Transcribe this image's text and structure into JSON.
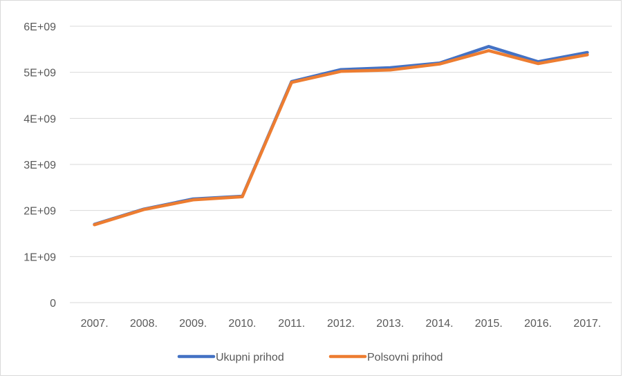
{
  "chart_data": {
    "type": "line",
    "title": "",
    "xlabel": "",
    "ylabel": "",
    "categories": [
      "2007.",
      "2008.",
      "2009.",
      "2010.",
      "2011.",
      "2012.",
      "2013.",
      "2014.",
      "2015.",
      "2016.",
      "2017."
    ],
    "y_ticks": [
      "0",
      "1E+09",
      "2E+09",
      "3E+09",
      "4E+09",
      "5E+09",
      "6E+09"
    ],
    "ylim": [
      0,
      6000000000
    ],
    "grid": true,
    "legend_position": "bottom",
    "series": [
      {
        "name": "Ukupni prihod",
        "color": "#4472C4",
        "values": [
          1700000000,
          2030000000,
          2250000000,
          2310000000,
          4800000000,
          5060000000,
          5100000000,
          5200000000,
          5560000000,
          5230000000,
          5430000000
        ]
      },
      {
        "name": "Polsovni prihod",
        "color": "#ED7D31",
        "values": [
          1690000000,
          2020000000,
          2230000000,
          2300000000,
          4780000000,
          5020000000,
          5050000000,
          5180000000,
          5470000000,
          5190000000,
          5380000000
        ]
      }
    ]
  }
}
